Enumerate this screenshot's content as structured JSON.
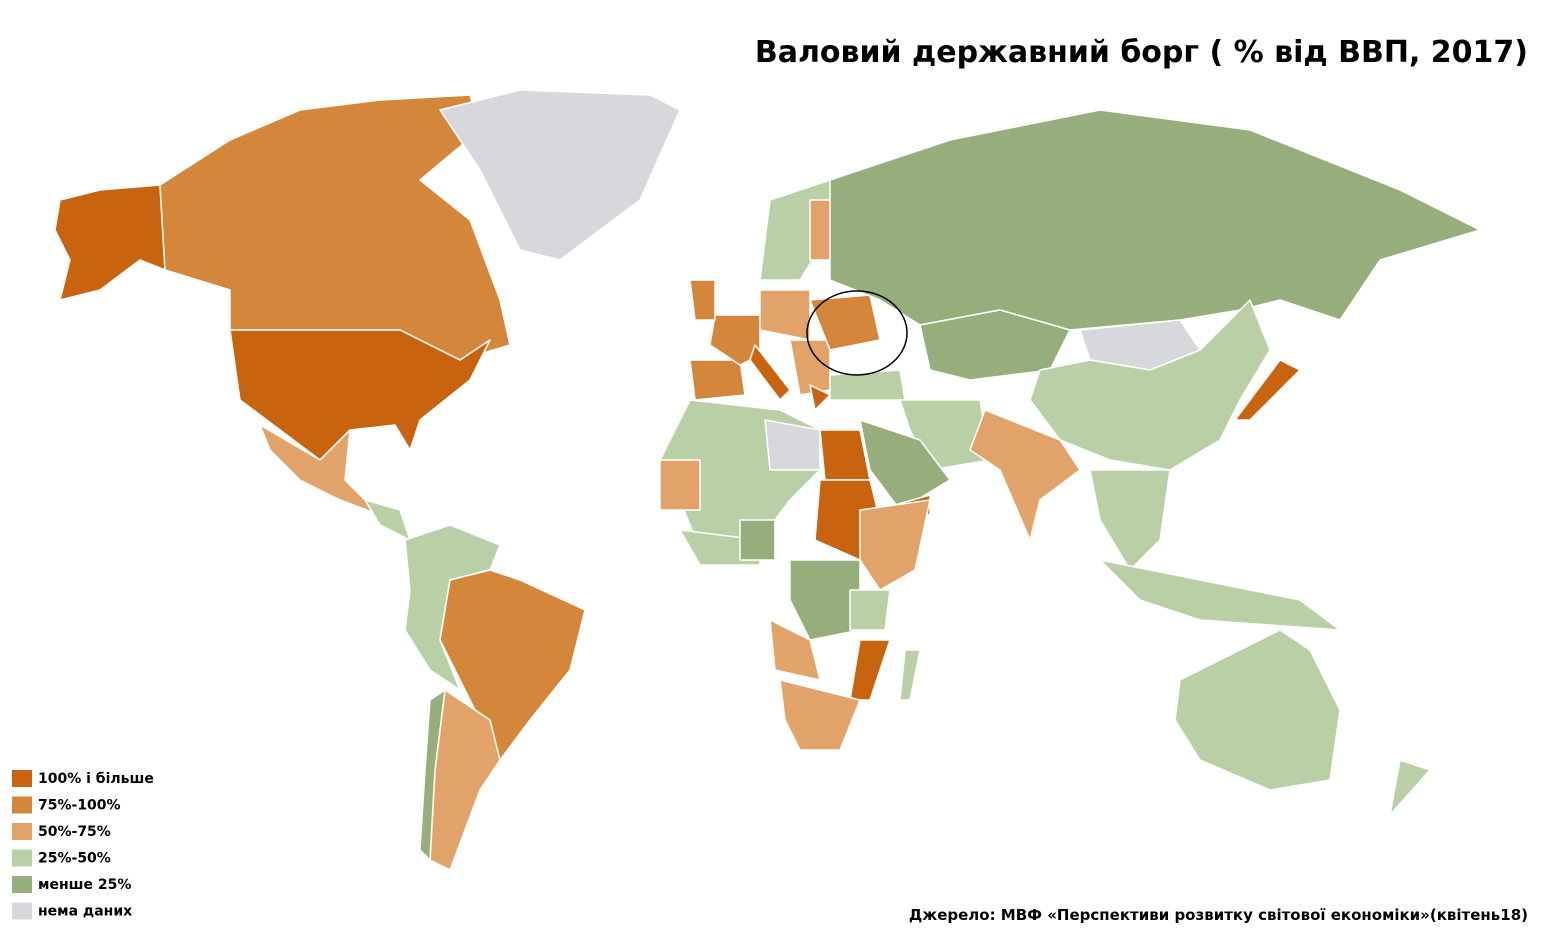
{
  "title": "Валовий державний борг ( %  від ВВП, 2017)",
  "legend": {
    "items": [
      {
        "label": "100% і більше",
        "color": "#c8630f"
      },
      {
        "label": "75%-100%",
        "color": "#d4873a"
      },
      {
        "label": "50%-75%",
        "color": "#e2a36b"
      },
      {
        "label": "25%-50%",
        "color": "#b9cfa5"
      },
      {
        "label": "менше 25%",
        "color": "#96ae7c"
      },
      {
        "label": "нема даних",
        "color": "#d7d8dc"
      }
    ]
  },
  "source": "Джерело: МВФ «Перспективи розвитку світової економіки»(квітень18)"
}
